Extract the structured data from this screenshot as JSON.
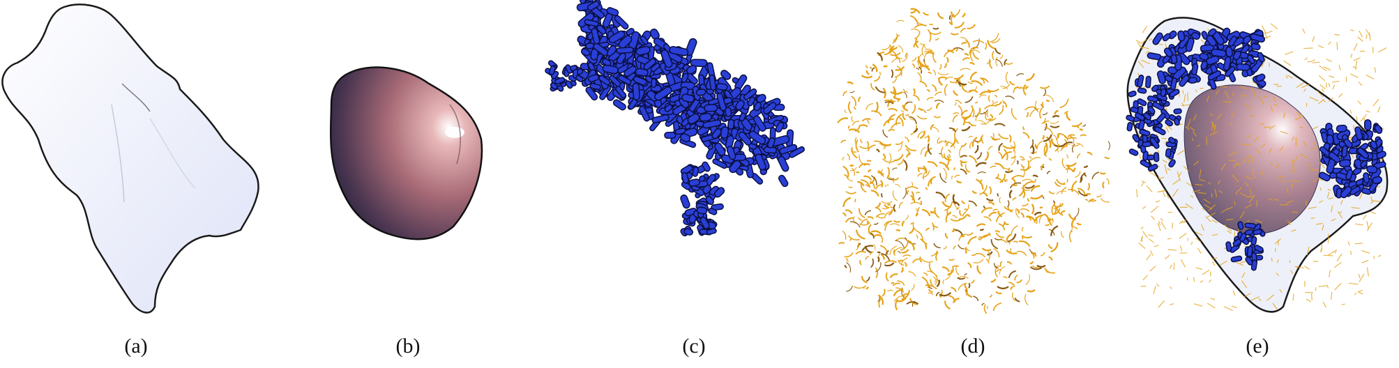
{
  "panels": [
    {
      "id": "a",
      "caption": "(a)"
    },
    {
      "id": "b",
      "caption": "(b)"
    },
    {
      "id": "c",
      "caption": "(c)"
    },
    {
      "id": "d",
      "caption": "(d)"
    },
    {
      "id": "e",
      "caption": "(e)"
    }
  ],
  "colors": {
    "outline": "#1a1a1a",
    "hull_fill": "#e9ecfa",
    "nucleus_dark": "#2a2540",
    "nucleus_light": "#e8b7b8",
    "mito_blue": "#2a3fd6",
    "er_gold": "#e6a31a"
  }
}
